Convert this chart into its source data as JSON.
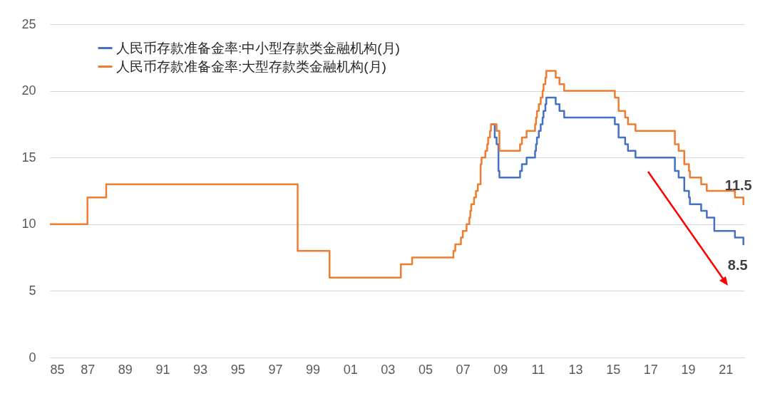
{
  "chart_data": {
    "type": "step",
    "xlim": [
      1985,
      2022
    ],
    "ylim": [
      0,
      25
    ],
    "yticks": [
      0,
      5,
      10,
      15,
      20,
      25
    ],
    "xticks": [
      {
        "value": 1985,
        "label": "85"
      },
      {
        "value": 1987,
        "label": "87"
      },
      {
        "value": 1989,
        "label": "89"
      },
      {
        "value": 1991,
        "label": "91"
      },
      {
        "value": 1993,
        "label": "93"
      },
      {
        "value": 1995,
        "label": "95"
      },
      {
        "value": 1997,
        "label": "97"
      },
      {
        "value": 1999,
        "label": "99"
      },
      {
        "value": 2001,
        "label": "01"
      },
      {
        "value": 2003,
        "label": "03"
      },
      {
        "value": 2005,
        "label": "05"
      },
      {
        "value": 2007,
        "label": "07"
      },
      {
        "value": 2009,
        "label": "09"
      },
      {
        "value": 2011,
        "label": "11"
      },
      {
        "value": 2013,
        "label": "13"
      },
      {
        "value": 2015,
        "label": "15"
      },
      {
        "value": 2017,
        "label": "17"
      },
      {
        "value": 2019,
        "label": "19"
      },
      {
        "value": 2021,
        "label": "21"
      }
    ],
    "grid": "y",
    "legend": "top left",
    "series": [
      {
        "name": "人民币存款准备金率:中小型存款类金融机构(月)",
        "color": "#4472c4",
        "x": [
          2008.5,
          2008.7,
          2008.8,
          2008.9,
          2008.95,
          2010.05,
          2010.15,
          2010.4,
          2010.85,
          2010.9,
          2010.95,
          2011.05,
          2011.15,
          2011.25,
          2011.3,
          2011.4,
          2011.45,
          2011.95,
          2012.15,
          2012.4,
          2015.1,
          2015.3,
          2015.65,
          2015.8,
          2016.2,
          2018.3,
          2018.5,
          2018.8,
          2019.05,
          2019.1,
          2019.7,
          2020.0,
          2020.4,
          2021.5,
          2021.95,
          2022.0
        ],
        "values": [
          17.5,
          16.5,
          16,
          14,
          13.5,
          14,
          14.5,
          15,
          15.5,
          16,
          16.5,
          17,
          17.5,
          18,
          18.5,
          19,
          19.5,
          19,
          18.5,
          18,
          17.5,
          16.5,
          16,
          15.5,
          15,
          14,
          13.5,
          12.5,
          12,
          11.5,
          11,
          10.5,
          9.5,
          9,
          8.5,
          8.5
        ]
      },
      {
        "name": "人民币存款准备金率:大型存款类金融机构(月)",
        "color": "#ed7d31",
        "x": [
          1985.0,
          1987.0,
          1988.0,
          1998.2,
          1999.9,
          2003.7,
          2004.3,
          2006.5,
          2006.6,
          2006.9,
          2007.0,
          2007.2,
          2007.35,
          2007.4,
          2007.45,
          2007.6,
          2007.7,
          2007.8,
          2007.95,
          2008.0,
          2008.2,
          2008.3,
          2008.35,
          2008.45,
          2008.5,
          2008.8,
          2008.95,
          2010.05,
          2010.15,
          2010.4,
          2010.85,
          2010.9,
          2010.95,
          2011.05,
          2011.15,
          2011.25,
          2011.3,
          2011.4,
          2011.45,
          2011.95,
          2012.15,
          2012.4,
          2015.1,
          2015.3,
          2015.65,
          2015.8,
          2016.2,
          2018.3,
          2018.5,
          2018.8,
          2019.05,
          2019.1,
          2019.7,
          2020.0,
          2021.5,
          2021.95,
          2022.0
        ],
        "values": [
          10,
          12,
          13,
          8,
          6,
          7,
          7.5,
          8,
          8.5,
          9,
          9.5,
          10,
          10.5,
          11,
          11.5,
          12,
          12.5,
          13,
          14.5,
          15,
          15.5,
          16,
          16.5,
          17,
          17.5,
          17,
          15.5,
          16,
          16.5,
          17,
          17.5,
          18,
          18.5,
          19,
          19.5,
          20,
          20.5,
          21,
          21.5,
          21,
          20.5,
          20,
          19.5,
          18.5,
          18,
          17.5,
          17,
          16,
          15.5,
          14.5,
          14,
          13.5,
          13,
          12.5,
          12,
          11.5,
          11.5
        ]
      }
    ],
    "annotations": [
      {
        "text": "11.5",
        "x": 2021.95,
        "y": 11.5
      },
      {
        "text": "8.5",
        "x": 2021.95,
        "y": 8.5
      }
    ]
  }
}
